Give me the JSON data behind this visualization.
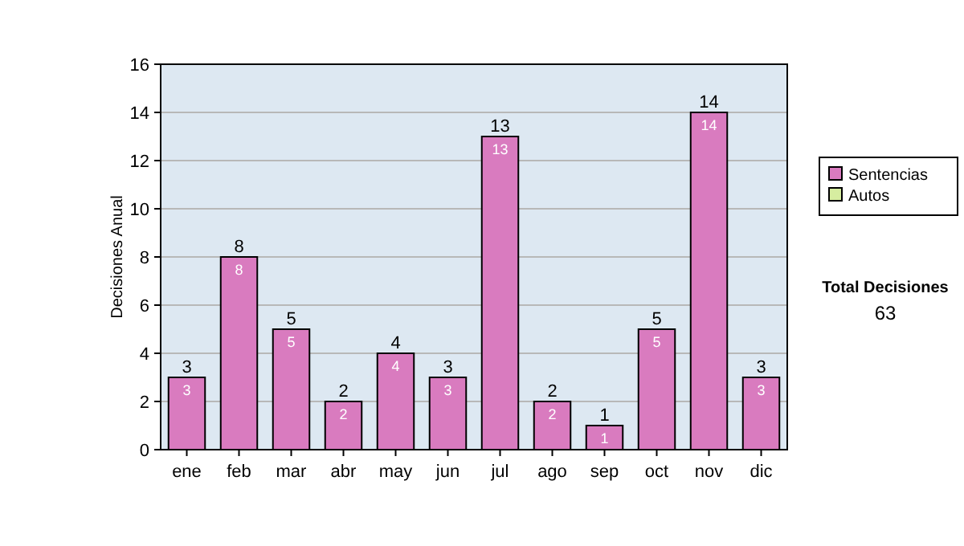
{
  "chart_data": {
    "type": "bar",
    "stacked": true,
    "ylabel": "Decisiones Anual",
    "categories": [
      "ene",
      "feb",
      "mar",
      "abr",
      "may",
      "jun",
      "jul",
      "ago",
      "sep",
      "oct",
      "nov",
      "dic"
    ],
    "series": [
      {
        "name": "Sentencias",
        "color": "#d97bbf",
        "values": [
          3,
          8,
          5,
          2,
          4,
          3,
          13,
          2,
          1,
          5,
          14,
          3
        ]
      },
      {
        "name": "Autos",
        "color": "#d6eda0",
        "values": [
          null,
          null,
          null,
          null,
          null,
          null,
          null,
          null,
          null,
          null,
          null,
          null
        ]
      }
    ],
    "totals": [
      "3",
      "8",
      "5",
      "2",
      "4",
      "3",
      "13",
      "2",
      "1",
      "5",
      "14",
      "3"
    ],
    "data_labels": true,
    "ylim": [
      0,
      16
    ],
    "yticks": [
      0,
      2,
      4,
      6,
      8,
      10,
      12,
      14,
      16
    ],
    "grid": "y",
    "legend": "right",
    "annotations": [
      "Total Decisiones",
      "63"
    ]
  }
}
